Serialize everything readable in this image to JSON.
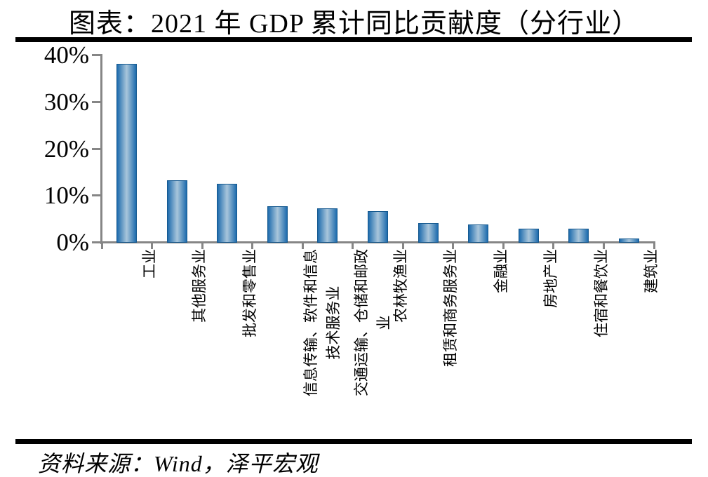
{
  "title": "图表：2021 年 GDP 累计同比贡献度（分行业）",
  "source_note": "资料来源：Wind，泽平宏观",
  "colors": {
    "bar_edge": "#1d6bad",
    "bar_center": "#a9c6db",
    "bar_border": "#15598f",
    "axis": "#868686",
    "rule": "#000000",
    "text": "#000000",
    "background": "#ffffff"
  },
  "chart_data": {
    "type": "bar",
    "title": "图表：2021 年 GDP 累计同比贡献度（分行业）",
    "categories": [
      "工业",
      "其他服务业",
      "批发和零售业",
      "信息传输、软件和信息技术服务业",
      "交通运输、仓储和邮政业",
      "农林牧渔业",
      "租赁和商务服务业",
      "金融业",
      "房地产业",
      "住宿和餐饮业",
      "建筑业"
    ],
    "category_display_lines": [
      [
        "工业"
      ],
      [
        "其他服务业"
      ],
      [
        "批发和零售业"
      ],
      [
        "信息传输、软件和信息",
        "技术服务业"
      ],
      [
        "交通运输、仓储和邮政",
        "业"
      ],
      [
        "农林牧渔业"
      ],
      [
        "租赁和商务服务业"
      ],
      [
        "金融业"
      ],
      [
        "房地产业"
      ],
      [
        "住宿和餐饮业"
      ],
      [
        "建筑业"
      ]
    ],
    "values": [
      38.0,
      13.2,
      12.4,
      7.6,
      7.2,
      6.6,
      4.1,
      3.7,
      2.9,
      2.8,
      0.8
    ],
    "unit": "%",
    "xlabel": "",
    "ylabel": "",
    "ylim": [
      0,
      40
    ],
    "ytick_values": [
      40,
      30,
      20,
      10,
      0
    ],
    "ytick_labels": [
      "40%",
      "30%",
      "20%",
      "10%",
      "0%"
    ],
    "grid": false,
    "legend": "none",
    "x_label_rotation_deg": -90,
    "source": "资料来源：Wind，泽平宏观"
  }
}
